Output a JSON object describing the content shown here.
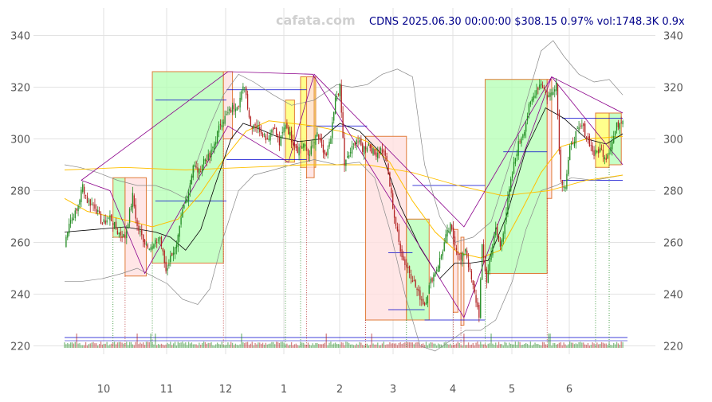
{
  "header": {
    "watermark": "cafata.com",
    "ticker_line": "CDNS 2025.06.30 00:00:00 $308.15 0.97% vol:1748.3K 0.9x"
  },
  "chart_data": {
    "type": "candlestick",
    "ticker": "CDNS",
    "date": "2025.06.30 00:00:00",
    "last_price": 308.15,
    "change_pct": 0.97,
    "volume": "1748.3K",
    "volume_ratio": "0.9x",
    "ylim": [
      212,
      346
    ],
    "y_ticks": [
      220,
      240,
      260,
      280,
      300,
      320,
      340
    ],
    "x_tick_labels": [
      "10",
      "11",
      "12",
      "1",
      "2",
      "3",
      "4",
      "5",
      "6"
    ],
    "grid": true,
    "colors": {
      "up": "#228b22",
      "down": "#b22222",
      "up_box": "#b3ffb3",
      "down_box": "#ffe0e0",
      "yellow_box": "#ffff66",
      "box_edge": "#e07b39",
      "ma_short": "#000000",
      "ma_long": "#ffc000",
      "band": "#888888",
      "zigzag": "#8b008b",
      "level": "#0000cd"
    },
    "price_path": [
      [
        0,
        259
      ],
      [
        3,
        268
      ],
      [
        8,
        272
      ],
      [
        12,
        282
      ],
      [
        15,
        276
      ],
      [
        20,
        274
      ],
      [
        25,
        267
      ],
      [
        30,
        270
      ],
      [
        35,
        264
      ],
      [
        40,
        262
      ],
      [
        45,
        278
      ],
      [
        48,
        266
      ],
      [
        53,
        260
      ],
      [
        58,
        258
      ],
      [
        63,
        262
      ],
      [
        67,
        249
      ],
      [
        71,
        256
      ],
      [
        74,
        258
      ],
      [
        78,
        272
      ],
      [
        82,
        280
      ],
      [
        85,
        290
      ],
      [
        89,
        287
      ],
      [
        92,
        292
      ],
      [
        96,
        293
      ],
      [
        100,
        300
      ],
      [
        103,
        306
      ],
      [
        107,
        309
      ],
      [
        111,
        312
      ],
      [
        115,
        314
      ],
      [
        119,
        321
      ],
      [
        123,
        305
      ],
      [
        126,
        306
      ],
      [
        130,
        303
      ],
      [
        134,
        300
      ],
      [
        138,
        305
      ],
      [
        142,
        298
      ],
      [
        146,
        306
      ],
      [
        150,
        300
      ],
      [
        154,
        296
      ],
      [
        158,
        298
      ],
      [
        161,
        294
      ],
      [
        164,
        297
      ],
      [
        167,
        302
      ],
      [
        170,
        296
      ],
      [
        173,
        293
      ],
      [
        176,
        300
      ],
      [
        179,
        315
      ],
      [
        182,
        320
      ],
      [
        185,
        290
      ],
      [
        189,
        295
      ],
      [
        193,
        300
      ],
      [
        197,
        296
      ],
      [
        201,
        298
      ],
      [
        205,
        294
      ],
      [
        209,
        296
      ],
      [
        212,
        294
      ],
      [
        215,
        282
      ],
      [
        218,
        270
      ],
      [
        221,
        260
      ],
      [
        224,
        253
      ],
      [
        227,
        250
      ],
      [
        230,
        246
      ],
      [
        234,
        240
      ],
      [
        238,
        236
      ],
      [
        242,
        245
      ],
      [
        246,
        250
      ],
      [
        249,
        255
      ],
      [
        252,
        262
      ],
      [
        255,
        266
      ],
      [
        259,
        258
      ],
      [
        262,
        253
      ],
      [
        265,
        258
      ],
      [
        268,
        248
      ],
      [
        271,
        240
      ],
      [
        274,
        232
      ],
      [
        276,
        258
      ],
      [
        279,
        245
      ],
      [
        282,
        257
      ],
      [
        285,
        265
      ],
      [
        288,
        258
      ],
      [
        291,
        268
      ],
      [
        294,
        280
      ],
      [
        297,
        290
      ],
      [
        300,
        298
      ],
      [
        304,
        304
      ],
      [
        307,
        312
      ],
      [
        311,
        318
      ],
      [
        315,
        322
      ],
      [
        319,
        316
      ],
      [
        322,
        318
      ],
      [
        325,
        322
      ],
      [
        328,
        284
      ],
      [
        331,
        282
      ],
      [
        334,
        296
      ],
      [
        338,
        302
      ],
      [
        342,
        305
      ],
      [
        346,
        300
      ],
      [
        350,
        294
      ],
      [
        354,
        296
      ],
      [
        358,
        293
      ],
      [
        362,
        299
      ],
      [
        365,
        305
      ],
      [
        369,
        308
      ]
    ],
    "ma_short": [
      [
        0,
        264
      ],
      [
        20,
        265
      ],
      [
        40,
        266
      ],
      [
        60,
        264
      ],
      [
        70,
        262
      ],
      [
        80,
        257
      ],
      [
        90,
        265
      ],
      [
        100,
        283
      ],
      [
        110,
        300
      ],
      [
        118,
        306
      ],
      [
        128,
        304
      ],
      [
        140,
        301
      ],
      [
        155,
        299
      ],
      [
        170,
        300
      ],
      [
        182,
        306
      ],
      [
        195,
        303
      ],
      [
        210,
        294
      ],
      [
        222,
        274
      ],
      [
        235,
        258
      ],
      [
        248,
        246
      ],
      [
        258,
        252
      ],
      [
        268,
        252
      ],
      [
        280,
        253
      ],
      [
        292,
        270
      ],
      [
        305,
        296
      ],
      [
        318,
        312
      ],
      [
        330,
        308
      ],
      [
        345,
        300
      ],
      [
        358,
        298
      ],
      [
        369,
        302
      ]
    ],
    "ma_long": [
      [
        0,
        277
      ],
      [
        15,
        272
      ],
      [
        30,
        270
      ],
      [
        45,
        268
      ],
      [
        58,
        266
      ],
      [
        75,
        269
      ],
      [
        90,
        279
      ],
      [
        105,
        292
      ],
      [
        120,
        303
      ],
      [
        135,
        307
      ],
      [
        150,
        306
      ],
      [
        165,
        305
      ],
      [
        182,
        303
      ],
      [
        200,
        299
      ],
      [
        215,
        291
      ],
      [
        230,
        276
      ],
      [
        245,
        264
      ],
      [
        260,
        256
      ],
      [
        275,
        254
      ],
      [
        288,
        257
      ],
      [
        300,
        270
      ],
      [
        315,
        287
      ],
      [
        328,
        297
      ],
      [
        345,
        300
      ],
      [
        369,
        301
      ]
    ],
    "ma_200": [
      [
        0,
        288
      ],
      [
        40,
        289
      ],
      [
        80,
        288
      ],
      [
        120,
        289
      ],
      [
        160,
        290
      ],
      [
        200,
        290
      ],
      [
        230,
        287
      ],
      [
        260,
        282
      ],
      [
        290,
        278
      ],
      [
        320,
        280
      ],
      [
        345,
        284
      ],
      [
        369,
        286
      ]
    ],
    "band_upper": [
      [
        0,
        290
      ],
      [
        10,
        289
      ],
      [
        22,
        287
      ],
      [
        35,
        284
      ],
      [
        48,
        282
      ],
      [
        60,
        282
      ],
      [
        70,
        280
      ],
      [
        80,
        277
      ],
      [
        88,
        292
      ],
      [
        96,
        305
      ],
      [
        105,
        317
      ],
      [
        115,
        325
      ],
      [
        125,
        322
      ],
      [
        138,
        317
      ],
      [
        150,
        313
      ],
      [
        165,
        315
      ],
      [
        180,
        321
      ],
      [
        190,
        320
      ],
      [
        200,
        321
      ],
      [
        210,
        325
      ],
      [
        220,
        327
      ],
      [
        230,
        324
      ],
      [
        238,
        290
      ],
      [
        248,
        270
      ],
      [
        258,
        260
      ],
      [
        270,
        262
      ],
      [
        282,
        268
      ],
      [
        294,
        290
      ],
      [
        305,
        314
      ],
      [
        315,
        334
      ],
      [
        323,
        338
      ],
      [
        330,
        332
      ],
      [
        340,
        325
      ],
      [
        350,
        322
      ],
      [
        360,
        323
      ],
      [
        369,
        317
      ]
    ],
    "band_lower": [
      [
        0,
        245
      ],
      [
        12,
        245
      ],
      [
        25,
        246
      ],
      [
        38,
        248
      ],
      [
        48,
        250
      ],
      [
        58,
        247
      ],
      [
        68,
        244
      ],
      [
        78,
        238
      ],
      [
        88,
        236
      ],
      [
        96,
        242
      ],
      [
        105,
        262
      ],
      [
        115,
        280
      ],
      [
        125,
        286
      ],
      [
        138,
        288
      ],
      [
        150,
        290
      ],
      [
        165,
        292
      ],
      [
        180,
        290
      ],
      [
        195,
        291
      ],
      [
        205,
        285
      ],
      [
        215,
        265
      ],
      [
        225,
        240
      ],
      [
        235,
        220
      ],
      [
        245,
        218
      ],
      [
        255,
        222
      ],
      [
        265,
        226
      ],
      [
        275,
        226
      ],
      [
        285,
        230
      ],
      [
        296,
        245
      ],
      [
        305,
        265
      ],
      [
        315,
        280
      ],
      [
        325,
        282
      ],
      [
        335,
        285
      ],
      [
        350,
        284
      ],
      [
        369,
        286
      ]
    ],
    "boxes": [
      {
        "kind": "up",
        "x0": 32,
        "x1": 40,
        "lo": 262,
        "hi": 285
      },
      {
        "kind": "down",
        "x0": 40,
        "x1": 54,
        "lo": 247,
        "hi": 285
      },
      {
        "kind": "up",
        "x0": 58,
        "x1": 105,
        "lo": 252,
        "hi": 326
      },
      {
        "kind": "down",
        "x0": 105,
        "x1": 111,
        "lo": 300,
        "hi": 326
      },
      {
        "kind": "yellow",
        "x0": 146,
        "x1": 152,
        "lo": 291,
        "hi": 315
      },
      {
        "kind": "yellow",
        "x0": 156,
        "x1": 166,
        "lo": 289,
        "hi": 324
      },
      {
        "kind": "down",
        "x0": 160,
        "x1": 165,
        "lo": 285,
        "hi": 324
      },
      {
        "kind": "down",
        "x0": 199,
        "x1": 226,
        "lo": 230,
        "hi": 301
      },
      {
        "kind": "up",
        "x0": 226,
        "x1": 241,
        "lo": 230,
        "hi": 269
      },
      {
        "kind": "down",
        "x0": 257,
        "x1": 260,
        "lo": 233,
        "hi": 265
      },
      {
        "kind": "down",
        "x0": 262,
        "x1": 264,
        "lo": 228,
        "hi": 262
      },
      {
        "kind": "up",
        "x0": 278,
        "x1": 319,
        "lo": 248,
        "hi": 323
      },
      {
        "kind": "down",
        "x0": 319,
        "x1": 322,
        "lo": 277,
        "hi": 323
      },
      {
        "kind": "yellow",
        "x0": 351,
        "x1": 360,
        "lo": 289,
        "hi": 310
      },
      {
        "kind": "up",
        "x0": 360,
        "x1": 368,
        "lo": 290,
        "hi": 310
      }
    ],
    "levels": [
      {
        "x0": 60,
        "x1": 107,
        "y": 315
      },
      {
        "x0": 60,
        "x1": 107,
        "y": 276
      },
      {
        "x0": 107,
        "x1": 160,
        "y": 319
      },
      {
        "x0": 107,
        "x1": 160,
        "y": 292
      },
      {
        "x0": 160,
        "x1": 200,
        "y": 305
      },
      {
        "x0": 160,
        "x1": 200,
        "y": 290
      },
      {
        "x0": 214,
        "x1": 230,
        "y": 256
      },
      {
        "x0": 214,
        "x1": 238,
        "y": 234
      },
      {
        "x0": 230,
        "x1": 278,
        "y": 282
      },
      {
        "x0": 238,
        "x1": 278,
        "y": 230
      },
      {
        "x0": 290,
        "x1": 319,
        "y": 295
      },
      {
        "x0": 329,
        "x1": 369,
        "y": 308
      },
      {
        "x0": 329,
        "x1": 369,
        "y": 284
      }
    ],
    "zigzag": [
      [
        [
          11,
          284
        ],
        [
          108,
          326
        ],
        [
          164,
          325
        ],
        [
          264,
          231
        ],
        [
          322,
          324
        ],
        [
          369,
          310
        ]
      ],
      [
        [
          11,
          284
        ],
        [
          30,
          280
        ],
        [
          53,
          248
        ],
        [
          108,
          305
        ],
        [
          148,
          291
        ],
        [
          165,
          325
        ],
        [
          264,
          266
        ],
        [
          322,
          324
        ],
        [
          369,
          290
        ]
      ]
    ],
    "volume_spikes": [
      8,
      48,
      57,
      60,
      117,
      173,
      203,
      264,
      282,
      320,
      321
    ]
  }
}
